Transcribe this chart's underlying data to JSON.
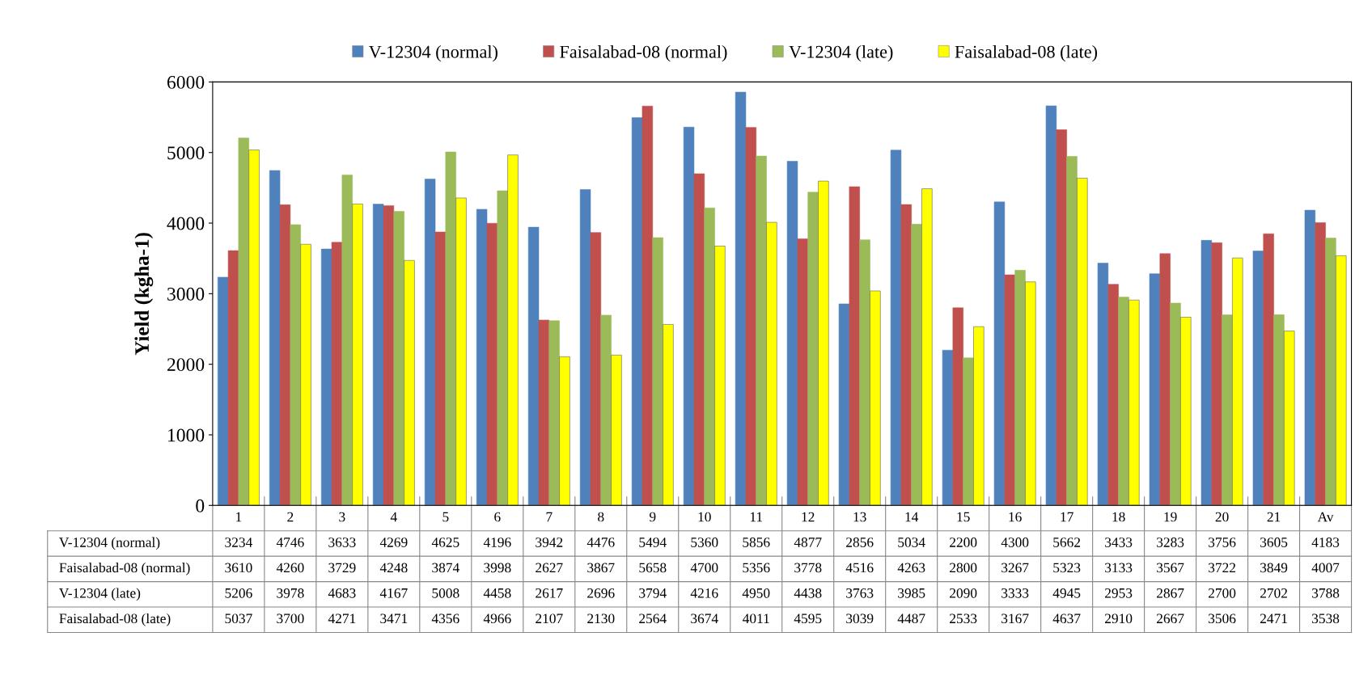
{
  "chart_data": {
    "type": "bar",
    "ylabel": "Yield (kgha-1)",
    "categories": [
      "1",
      "2",
      "3",
      "4",
      "5",
      "6",
      "7",
      "8",
      "9",
      "10",
      "11",
      "12",
      "13",
      "14",
      "15",
      "16",
      "17",
      "18",
      "19",
      "20",
      "21",
      "Av"
    ],
    "series": [
      {
        "name": "V-12304 (normal)",
        "color": "#4f81bd",
        "values": [
          3234,
          4746,
          3633,
          4269,
          4625,
          4196,
          3942,
          4476,
          5494,
          5360,
          5856,
          4877,
          2856,
          5034,
          2200,
          4300,
          5662,
          3433,
          3283,
          3756,
          3605,
          4183
        ]
      },
      {
        "name": "Faisalabad-08 (normal)",
        "color": "#c0504d",
        "values": [
          3610,
          4260,
          3729,
          4248,
          3874,
          3998,
          2627,
          3867,
          5658,
          4700,
          5356,
          3778,
          4516,
          4263,
          2800,
          3267,
          5323,
          3133,
          3567,
          3722,
          3849,
          4007
        ]
      },
      {
        "name": "V-12304 (late)",
        "color": "#9bbb59",
        "values": [
          5206,
          3978,
          4683,
          4167,
          5008,
          4458,
          2617,
          2696,
          3794,
          4216,
          4950,
          4438,
          3763,
          3985,
          2090,
          3333,
          4945,
          2953,
          2867,
          2700,
          2702,
          3788
        ]
      },
      {
        "name": "Faisalabad-08 (late)",
        "color": "#ffff00",
        "values": [
          5037,
          3700,
          4271,
          3471,
          4356,
          4966,
          2107,
          2130,
          2564,
          3674,
          4011,
          4595,
          3039,
          4487,
          2533,
          3167,
          4637,
          2910,
          2667,
          3506,
          2471,
          3538
        ]
      }
    ],
    "ylim": [
      0,
      6000
    ],
    "yticks": [
      0,
      1000,
      2000,
      3000,
      4000,
      5000,
      6000
    ],
    "grid": false,
    "legend": "top",
    "data_labels": true
  }
}
